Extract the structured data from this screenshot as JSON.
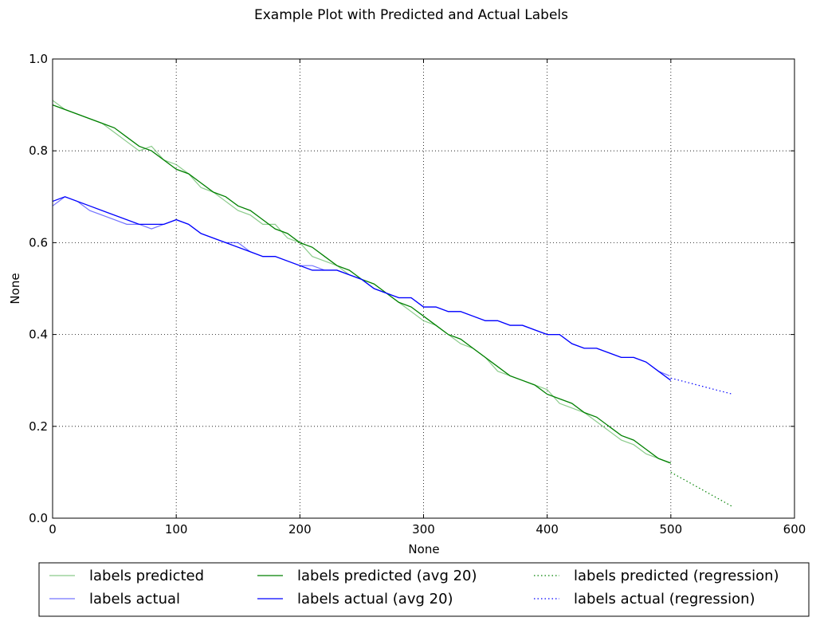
{
  "chart_data": {
    "type": "line",
    "title": "Example Plot with Predicted and Actual Labels",
    "xlabel": "None",
    "ylabel": "None",
    "xlim": [
      0,
      600
    ],
    "ylim": [
      0.0,
      1.0
    ],
    "xticks": [
      "0",
      "100",
      "200",
      "300",
      "400",
      "500",
      "600"
    ],
    "yticks": [
      "0.0",
      "0.2",
      "0.4",
      "0.6",
      "0.8",
      "1.0"
    ],
    "grid": true,
    "legend_position": "below plot, three columns",
    "series": [
      {
        "name": "labels predicted",
        "color": "#2ca02c",
        "style": "solid-light",
        "x": [
          0,
          10,
          20,
          30,
          40,
          50,
          60,
          70,
          80,
          90,
          100,
          110,
          120,
          130,
          140,
          150,
          160,
          170,
          180,
          190,
          200,
          210,
          220,
          230,
          240,
          250,
          260,
          270,
          280,
          290,
          300,
          310,
          320,
          330,
          340,
          350,
          360,
          370,
          380,
          390,
          400,
          410,
          420,
          430,
          440,
          450,
          460,
          470,
          480,
          490,
          499
        ],
        "y": [
          0.91,
          0.89,
          0.88,
          0.87,
          0.86,
          0.84,
          0.82,
          0.8,
          0.81,
          0.78,
          0.77,
          0.75,
          0.72,
          0.71,
          0.69,
          0.67,
          0.66,
          0.64,
          0.64,
          0.61,
          0.6,
          0.57,
          0.56,
          0.55,
          0.53,
          0.52,
          0.5,
          0.49,
          0.47,
          0.45,
          0.43,
          0.42,
          0.4,
          0.38,
          0.37,
          0.35,
          0.32,
          0.31,
          0.3,
          0.29,
          0.28,
          0.25,
          0.24,
          0.23,
          0.21,
          0.19,
          0.17,
          0.16,
          0.14,
          0.13,
          0.12
        ]
      },
      {
        "name": "labels actual",
        "color": "#0000ff",
        "style": "solid-light",
        "x": [
          0,
          10,
          20,
          30,
          40,
          50,
          60,
          70,
          80,
          90,
          100,
          110,
          120,
          130,
          140,
          150,
          160,
          170,
          180,
          190,
          200,
          210,
          220,
          230,
          240,
          250,
          260,
          270,
          280,
          290,
          300,
          310,
          320,
          330,
          340,
          350,
          360,
          370,
          380,
          390,
          400,
          410,
          420,
          430,
          440,
          450,
          460,
          470,
          480,
          490,
          499
        ],
        "y": [
          0.68,
          0.7,
          0.69,
          0.67,
          0.66,
          0.65,
          0.64,
          0.64,
          0.63,
          0.64,
          0.65,
          0.64,
          0.62,
          0.61,
          0.6,
          0.6,
          0.58,
          0.57,
          0.57,
          0.56,
          0.55,
          0.55,
          0.54,
          0.54,
          0.53,
          0.52,
          0.5,
          0.49,
          0.48,
          0.48,
          0.46,
          0.46,
          0.45,
          0.45,
          0.44,
          0.43,
          0.43,
          0.42,
          0.42,
          0.41,
          0.4,
          0.4,
          0.38,
          0.37,
          0.37,
          0.36,
          0.35,
          0.35,
          0.34,
          0.32,
          0.31
        ]
      },
      {
        "name": "labels predicted (avg 20)",
        "color": "#008000",
        "style": "solid",
        "x": [
          0,
          10,
          20,
          30,
          40,
          50,
          60,
          70,
          80,
          90,
          100,
          110,
          120,
          130,
          140,
          150,
          160,
          170,
          180,
          190,
          200,
          210,
          220,
          230,
          240,
          250,
          260,
          270,
          280,
          290,
          300,
          310,
          320,
          330,
          340,
          350,
          360,
          370,
          380,
          390,
          400,
          410,
          420,
          430,
          440,
          450,
          460,
          470,
          480,
          490,
          500
        ],
        "y": [
          0.9,
          0.89,
          0.88,
          0.87,
          0.86,
          0.85,
          0.83,
          0.81,
          0.8,
          0.78,
          0.76,
          0.75,
          0.73,
          0.71,
          0.7,
          0.68,
          0.67,
          0.65,
          0.63,
          0.62,
          0.6,
          0.59,
          0.57,
          0.55,
          0.54,
          0.52,
          0.51,
          0.49,
          0.47,
          0.46,
          0.44,
          0.42,
          0.4,
          0.39,
          0.37,
          0.35,
          0.33,
          0.31,
          0.3,
          0.29,
          0.27,
          0.26,
          0.25,
          0.23,
          0.22,
          0.2,
          0.18,
          0.17,
          0.15,
          0.13,
          0.12
        ]
      },
      {
        "name": "labels actual (avg 20)",
        "color": "#0000ff",
        "style": "solid",
        "x": [
          0,
          10,
          20,
          30,
          40,
          50,
          60,
          70,
          80,
          90,
          100,
          110,
          120,
          130,
          140,
          150,
          160,
          170,
          180,
          190,
          200,
          210,
          220,
          230,
          240,
          250,
          260,
          270,
          280,
          290,
          300,
          310,
          320,
          330,
          340,
          350,
          360,
          370,
          380,
          390,
          400,
          410,
          420,
          430,
          440,
          450,
          460,
          470,
          480,
          490,
          500
        ],
        "y": [
          0.69,
          0.7,
          0.69,
          0.68,
          0.67,
          0.66,
          0.65,
          0.64,
          0.64,
          0.64,
          0.65,
          0.64,
          0.62,
          0.61,
          0.6,
          0.59,
          0.58,
          0.57,
          0.57,
          0.56,
          0.55,
          0.54,
          0.54,
          0.54,
          0.53,
          0.52,
          0.5,
          0.49,
          0.48,
          0.48,
          0.46,
          0.46,
          0.45,
          0.45,
          0.44,
          0.43,
          0.43,
          0.42,
          0.42,
          0.41,
          0.4,
          0.4,
          0.38,
          0.37,
          0.37,
          0.36,
          0.35,
          0.35,
          0.34,
          0.32,
          0.3
        ]
      },
      {
        "name": "labels predicted (regression)",
        "color": "#008000",
        "style": "dotted",
        "x": [
          500,
          550
        ],
        "y": [
          0.1,
          0.025
        ]
      },
      {
        "name": "labels actual (regression)",
        "color": "#0000ff",
        "style": "dotted",
        "x": [
          500,
          550
        ],
        "y": [
          0.305,
          0.27
        ]
      }
    ]
  }
}
